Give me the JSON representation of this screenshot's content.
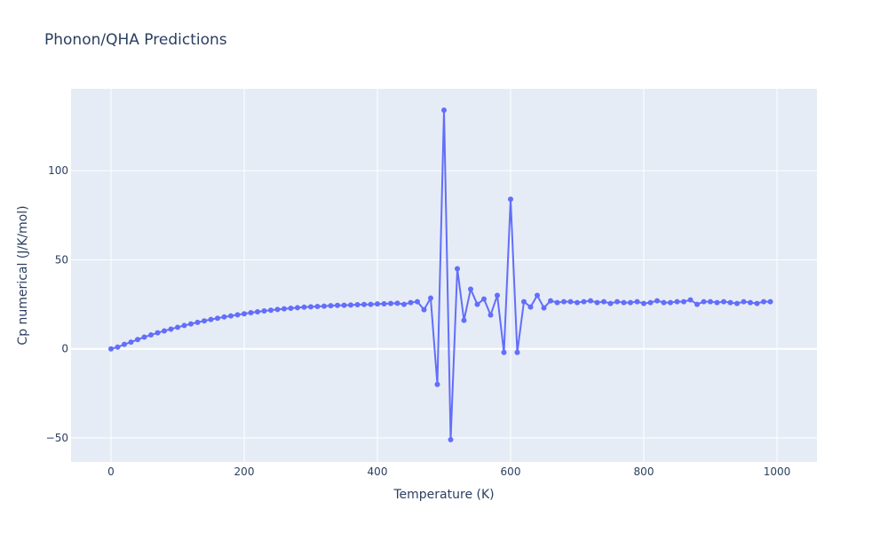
{
  "chart_data": {
    "type": "line",
    "title": "Phonon/QHA Predictions",
    "xlabel": "Temperature (K)",
    "ylabel": "Cp numerical (J/K/mol)",
    "xlim": [
      -60,
      1060
    ],
    "ylim": [
      -63.5,
      146
    ],
    "x_ticks": [
      0,
      200,
      400,
      600,
      800,
      1000
    ],
    "x_tick_labels": [
      "0",
      "200",
      "400",
      "600",
      "800",
      "1000"
    ],
    "y_ticks": [
      -50,
      0,
      50,
      100
    ],
    "y_tick_labels": [
      "−50",
      "0",
      "50",
      "100"
    ],
    "grid": true,
    "legend": "none",
    "colors": {
      "line": "#636efa",
      "plot_bg": "#e5ecf6",
      "grid": "#ffffff",
      "text": "#2a3f5f"
    },
    "series": [
      {
        "mode": "lines+markers",
        "x": [
          0,
          10,
          20,
          30,
          40,
          50,
          60,
          70,
          80,
          90,
          100,
          110,
          120,
          130,
          140,
          150,
          160,
          170,
          180,
          190,
          200,
          210,
          220,
          230,
          240,
          250,
          260,
          270,
          280,
          290,
          300,
          310,
          320,
          330,
          340,
          350,
          360,
          370,
          380,
          390,
          400,
          410,
          420,
          430,
          440,
          450,
          460,
          470,
          480,
          490,
          500,
          510,
          520,
          530,
          540,
          550,
          560,
          570,
          580,
          590,
          600,
          610,
          620,
          630,
          640,
          650,
          660,
          670,
          680,
          690,
          700,
          710,
          720,
          730,
          740,
          750,
          760,
          770,
          780,
          790,
          800,
          810,
          820,
          830,
          840,
          850,
          860,
          870,
          880,
          890,
          900,
          910,
          920,
          930,
          940,
          950,
          960,
          970,
          980,
          990
        ],
        "y": [
          0,
          1,
          2.5,
          3.8,
          5.2,
          6.6,
          7.8,
          9,
          10.1,
          11.1,
          12.1,
          13.1,
          14,
          14.9,
          15.7,
          16.5,
          17.2,
          17.9,
          18.5,
          19.1,
          19.7,
          20.3,
          20.8,
          21.3,
          21.7,
          22.1,
          22.5,
          22.8,
          23.1,
          23.4,
          23.6,
          23.8,
          24.0,
          24.2,
          24.4,
          24.5,
          24.6,
          24.8,
          24.9,
          25.0,
          25.2,
          25.3,
          25.5,
          25.6,
          25.0,
          26.0,
          26.5,
          22.0,
          28.5,
          -20,
          134,
          -51,
          45,
          16,
          33.5,
          25,
          28.0,
          19.0,
          30.0,
          -2,
          84,
          -2,
          26.5,
          23.5,
          30.0,
          23.0,
          27.0,
          26.0,
          26.5,
          26.5,
          26.0,
          26.5,
          27.0,
          26.0,
          26.5,
          25.5,
          26.5,
          26.0,
          26.0,
          26.5,
          25.5,
          26.0,
          27.0,
          26.0,
          26.0,
          26.5,
          26.5,
          27.5,
          25.0,
          26.5,
          26.5,
          26.0,
          26.5,
          26.0,
          25.5,
          26.5,
          26.0,
          25.5,
          26.5,
          26.5
        ]
      }
    ]
  }
}
